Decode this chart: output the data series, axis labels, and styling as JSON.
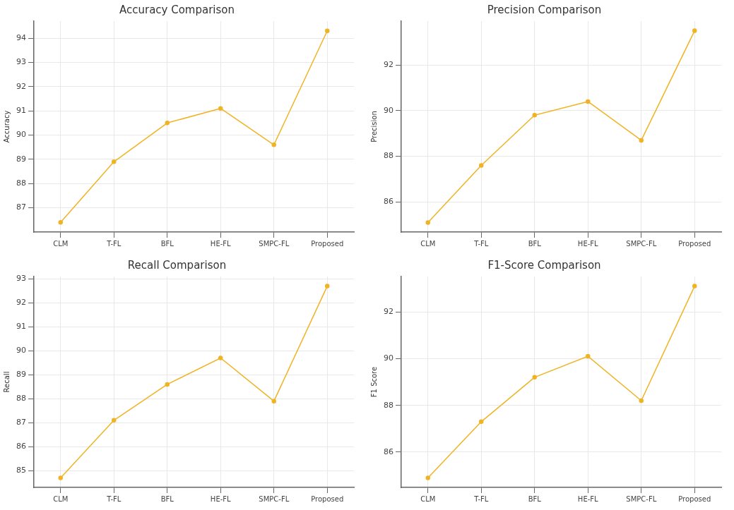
{
  "chart_data": [
    {
      "type": "line",
      "title": "Accuracy Comparison",
      "ylabel": "Accuracy",
      "categories": [
        "CLM",
        "T-FL",
        "BFL",
        "HE-FL",
        "SMPC-FL",
        "Proposed"
      ],
      "series": [
        {
          "color": "#f0b323",
          "values": [
            86.4,
            88.9,
            90.5,
            91.1,
            89.6,
            94.3
          ]
        }
      ],
      "ylim": [
        86.0,
        94.7
      ],
      "yticks": [
        87,
        88,
        89,
        90,
        91,
        92,
        93,
        94
      ],
      "grid": true,
      "marker": "circle",
      "line_style": "solid"
    },
    {
      "type": "line",
      "title": "Precision Comparison",
      "ylabel": "Precision",
      "categories": [
        "CLM",
        "T-FL",
        "BFL",
        "HE-FL",
        "SMPC-FL",
        "Proposed"
      ],
      "series": [
        {
          "color": "#f0b323",
          "values": [
            85.1,
            87.6,
            89.8,
            90.4,
            88.7,
            93.5
          ]
        }
      ],
      "ylim": [
        84.68,
        93.92
      ],
      "yticks": [
        86,
        88,
        90,
        92
      ],
      "grid": true,
      "marker": "circle",
      "line_style": "solid"
    },
    {
      "type": "line",
      "title": "Recall Comparison",
      "ylabel": "Recall",
      "categories": [
        "CLM",
        "T-FL",
        "BFL",
        "HE-FL",
        "SMPC-FL",
        "Proposed"
      ],
      "series": [
        {
          "color": "#f0b323",
          "values": [
            84.7,
            87.1,
            88.6,
            89.7,
            87.9,
            92.7
          ]
        }
      ],
      "ylim": [
        84.3,
        93.1
      ],
      "yticks": [
        85,
        86,
        87,
        88,
        89,
        90,
        91,
        92,
        93
      ],
      "grid": true,
      "marker": "circle",
      "line_style": "solid"
    },
    {
      "type": "line",
      "title": "F1-Score Comparison",
      "ylabel": "F1 Score",
      "categories": [
        "CLM",
        "T-FL",
        "BFL",
        "HE-FL",
        "SMPC-FL",
        "Proposed"
      ],
      "series": [
        {
          "color": "#f0b323",
          "values": [
            84.9,
            87.3,
            89.2,
            90.1,
            88.2,
            93.1
          ]
        }
      ],
      "ylim": [
        84.49,
        93.51
      ],
      "yticks": [
        86,
        88,
        90,
        92
      ],
      "grid": true,
      "marker": "circle",
      "line_style": "solid"
    }
  ]
}
